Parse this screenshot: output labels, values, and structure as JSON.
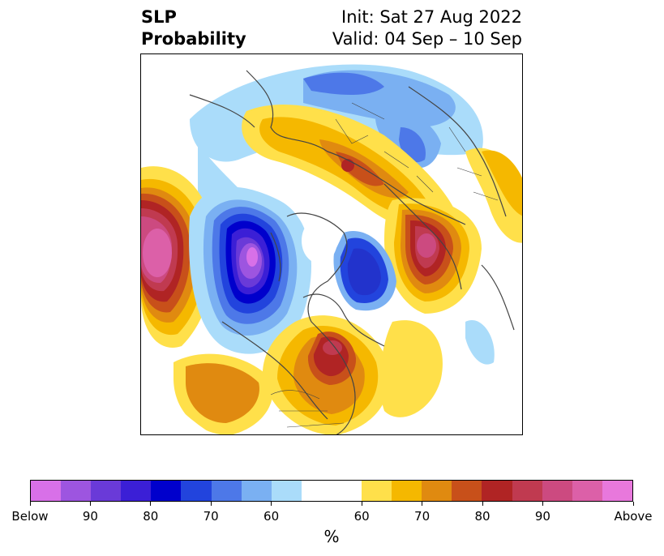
{
  "header": {
    "title_line1": "SLP",
    "title_line2": "Probability",
    "init_text": "Init: Sat 27 Aug 2022",
    "valid_text": "Valid: 04 Sep – 10 Sep"
  },
  "colorbar": {
    "unit_label": "%",
    "ticks": [
      "Below",
      "90",
      "80",
      "70",
      "60",
      "60",
      "70",
      "80",
      "90",
      "Above"
    ],
    "below_colors": [
      "#d870e8",
      "#9d55e0",
      "#6a3ad8",
      "#3b1fd6",
      "#0000cc",
      "#2244dd",
      "#4d78e8",
      "#7ab0f2",
      "#aadcfa"
    ],
    "neutral_color": "#ffffff",
    "above_colors": [
      "#ffe04a",
      "#f5b800",
      "#e08a10",
      "#c8501a",
      "#b02424",
      "#c03a50",
      "#cc4a80",
      "#dc60a8",
      "#e878dc"
    ]
  },
  "map": {
    "projection": "north-polar-stereographic",
    "coastline_color": "#444444"
  }
}
